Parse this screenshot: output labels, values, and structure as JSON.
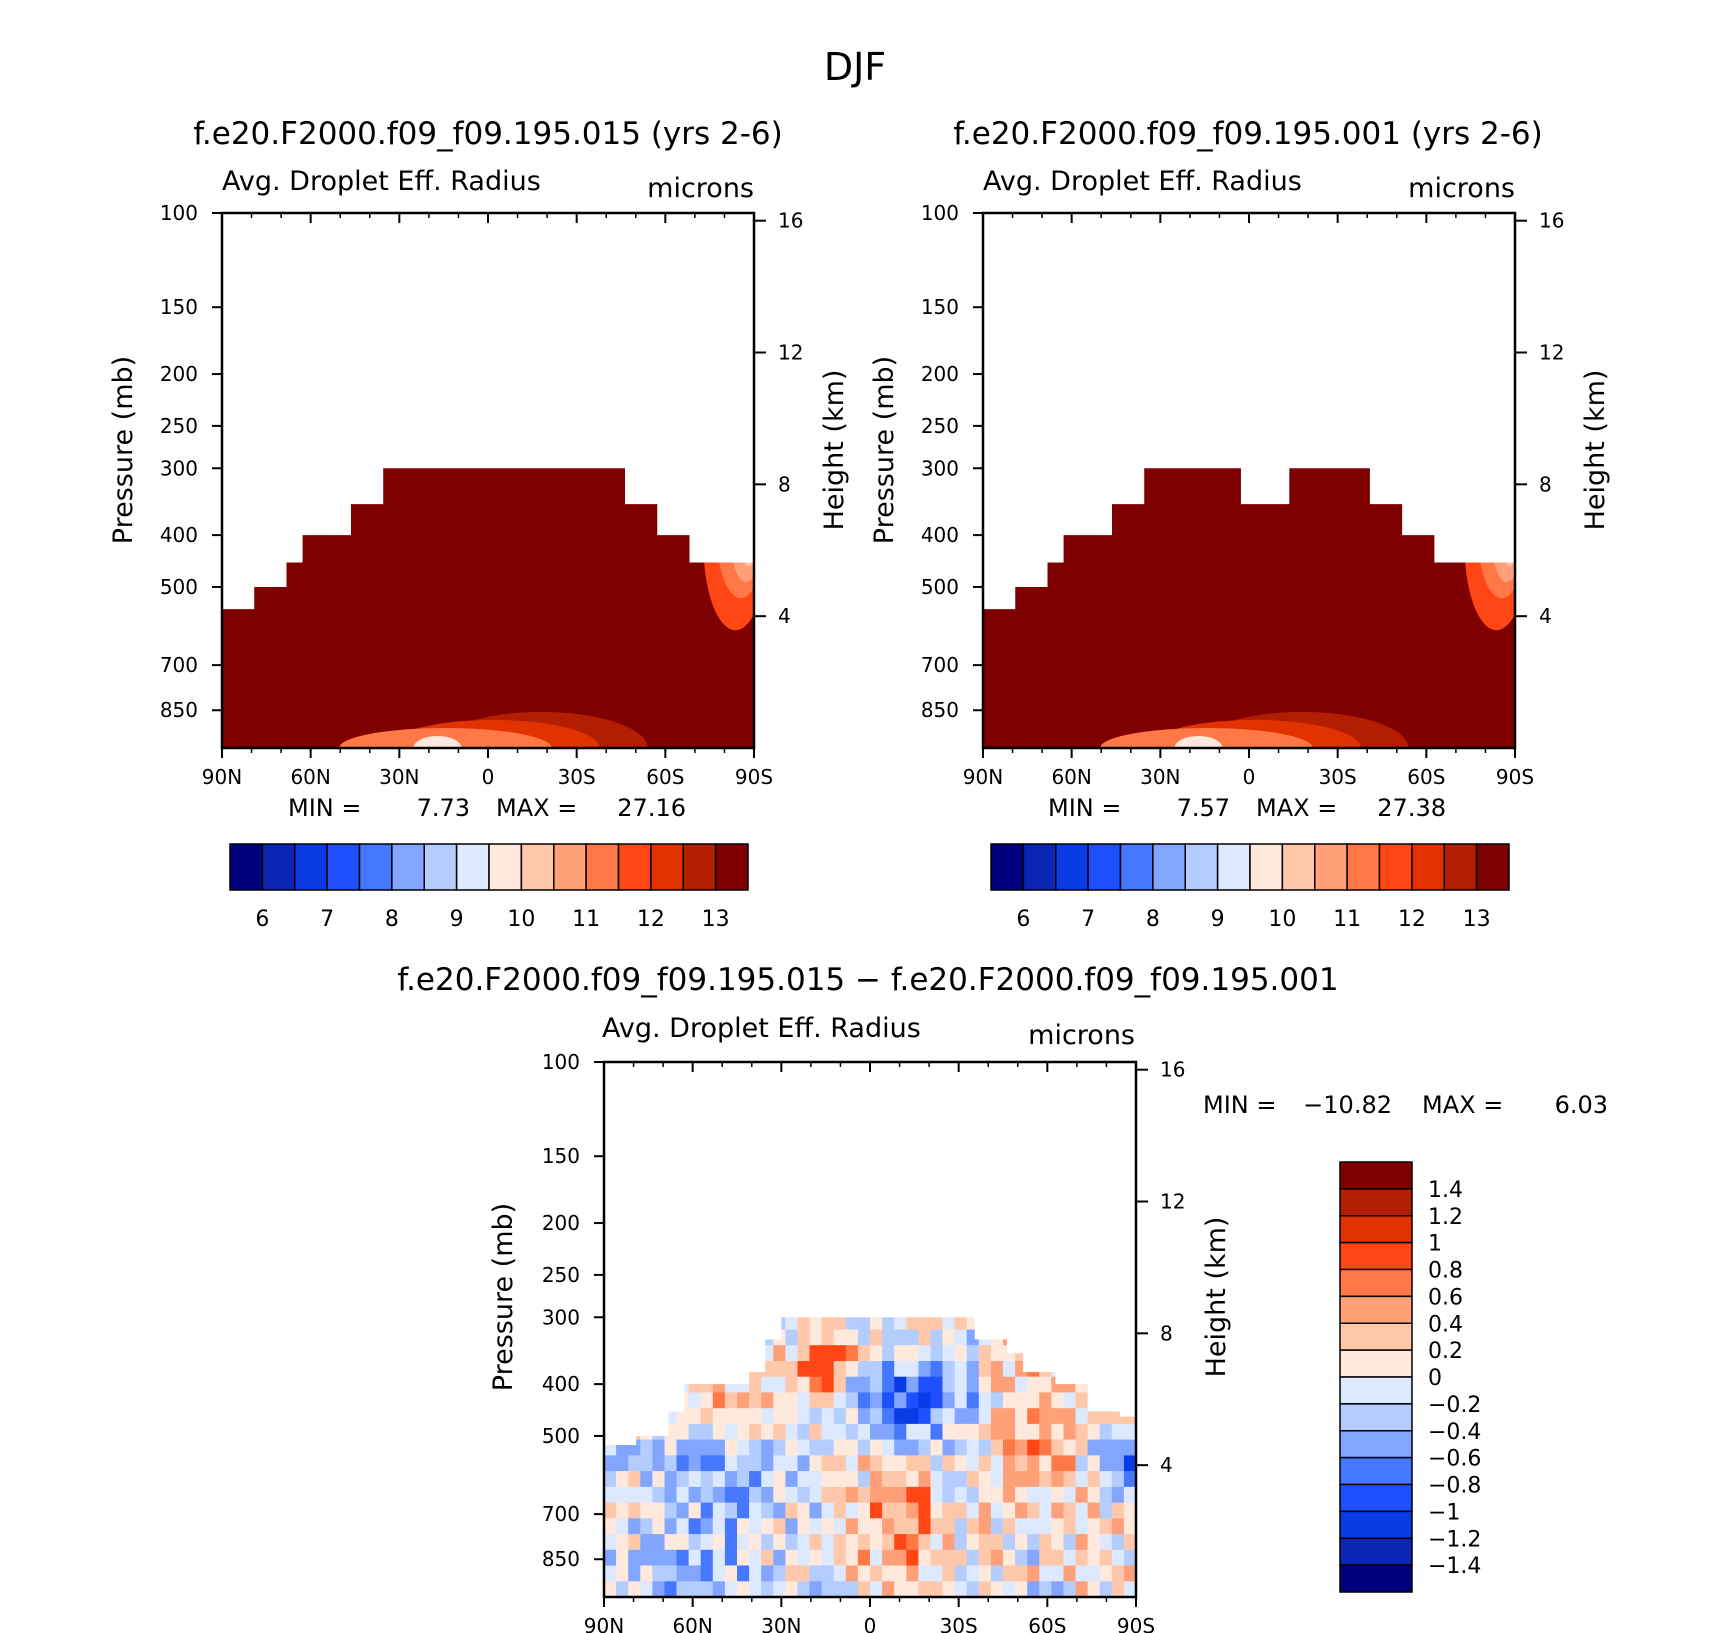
{
  "figure": {
    "title": "DJF"
  },
  "chart_data": [
    {
      "type": "heatmap",
      "title": "f.e20.F2000.f09_f09.195.015 (yrs 2-6)",
      "subtitle_left": "Avg. Droplet Eff. Radius",
      "subtitle_right": "microns",
      "ylabel": "Pressure (mb)",
      "ylabel_right": "Height (km)",
      "x_ticks": [
        "90N",
        "60N",
        "30N",
        "0",
        "30S",
        "60S",
        "90S"
      ],
      "x_values": [
        90,
        60,
        30,
        0,
        -30,
        -60,
        -90
      ],
      "y_ticks": [
        100,
        150,
        200,
        250,
        300,
        400,
        500,
        700,
        850
      ],
      "y_right_ticks": [
        4,
        8,
        12,
        16
      ],
      "ylim": [
        100,
        1000
      ],
      "y_scale": "log",
      "min_label": "MIN =",
      "min_value": "7.73",
      "max_label": "MAX =",
      "max_value": "27.16",
      "colorbar": {
        "labels": [
          "6",
          "7",
          "8",
          "9",
          "10",
          "11",
          "12",
          "13"
        ],
        "colors": [
          "#00007f",
          "#0a24b3",
          "#0a3ce6",
          "#1e50ff",
          "#4678ff",
          "#82a5ff",
          "#b4cdff",
          "#dce9ff",
          "#ffe9dc",
          "#ffc8aa",
          "#ffa078",
          "#ff7846",
          "#ff4614",
          "#e13200",
          "#b41e00",
          "#7f0000"
        ]
      },
      "field_top_pressure": [
        550,
        550,
        500,
        500,
        450,
        400,
        400,
        400,
        350,
        350,
        300,
        300,
        300,
        300,
        300,
        300,
        300,
        300,
        300,
        300,
        300,
        300,
        300,
        300,
        300,
        350,
        350,
        400,
        400,
        450,
        450,
        450,
        450
      ]
    },
    {
      "type": "heatmap",
      "title": "f.e20.F2000.f09_f09.195.001 (yrs 2-6)",
      "subtitle_left": "Avg. Droplet Eff. Radius",
      "subtitle_right": "microns",
      "ylabel": "Pressure (mb)",
      "ylabel_right": "Height (km)",
      "x_ticks": [
        "90N",
        "60N",
        "30N",
        "0",
        "30S",
        "60S",
        "90S"
      ],
      "x_values": [
        90,
        60,
        30,
        0,
        -30,
        -60,
        -90
      ],
      "y_ticks": [
        100,
        150,
        200,
        250,
        300,
        400,
        500,
        700,
        850
      ],
      "y_right_ticks": [
        4,
        8,
        12,
        16
      ],
      "ylim": [
        100,
        1000
      ],
      "y_scale": "log",
      "min_label": "MIN =",
      "min_value": "7.57",
      "max_label": "MAX =",
      "max_value": "27.38",
      "colorbar": {
        "labels": [
          "6",
          "7",
          "8",
          "9",
          "10",
          "11",
          "12",
          "13"
        ],
        "colors": [
          "#00007f",
          "#0a24b3",
          "#0a3ce6",
          "#1e50ff",
          "#4678ff",
          "#82a5ff",
          "#b4cdff",
          "#dce9ff",
          "#ffe9dc",
          "#ffc8aa",
          "#ffa078",
          "#ff7846",
          "#ff4614",
          "#e13200",
          "#b41e00",
          "#7f0000"
        ]
      },
      "field_top_pressure": [
        550,
        550,
        500,
        500,
        450,
        400,
        400,
        400,
        350,
        350,
        300,
        300,
        300,
        300,
        300,
        300,
        350,
        350,
        350,
        300,
        300,
        300,
        300,
        300,
        350,
        350,
        400,
        400,
        450,
        450,
        450,
        450,
        450
      ]
    },
    {
      "type": "heatmap",
      "title": "f.e20.F2000.f09_f09.195.015 − f.e20.F2000.f09_f09.195.001",
      "subtitle_left": "Avg. Droplet Eff. Radius",
      "subtitle_right": "microns",
      "ylabel": "Pressure (mb)",
      "ylabel_right": "Height (km)",
      "x_ticks": [
        "90N",
        "60N",
        "30N",
        "0",
        "30S",
        "60S",
        "90S"
      ],
      "x_values": [
        90,
        60,
        30,
        0,
        -30,
        -60,
        -90
      ],
      "y_ticks": [
        100,
        150,
        200,
        250,
        300,
        400,
        500,
        700,
        850
      ],
      "y_right_ticks": [
        4,
        8,
        12,
        16
      ],
      "ylim": [
        100,
        1000
      ],
      "y_scale": "log",
      "min_label": "MIN =",
      "min_value": "−10.82",
      "max_label": "MAX =",
      "max_value": "6.03",
      "colorbar": {
        "labels": [
          "1.4",
          "1.2",
          "1",
          "0.8",
          "0.6",
          "0.4",
          "0.2",
          "0",
          "−0.2",
          "−0.4",
          "−0.6",
          "−0.8",
          "−1",
          "−1.2",
          "−1.4"
        ],
        "colors": [
          "#7f0000",
          "#b41e00",
          "#e13200",
          "#ff4614",
          "#ff7846",
          "#ffa078",
          "#ffc8aa",
          "#ffe9dc",
          "#dce9ff",
          "#b4cdff",
          "#82a5ff",
          "#4678ff",
          "#1e50ff",
          "#0a3ce6",
          "#0a24b3",
          "#00007f"
        ]
      },
      "field_top_pressure": [
        520,
        520,
        500,
        500,
        450,
        400,
        400,
        400,
        400,
        380,
        330,
        300,
        300,
        300,
        300,
        300,
        300,
        300,
        300,
        300,
        300,
        300,
        300,
        330,
        330,
        350,
        380,
        380,
        400,
        400,
        450,
        450,
        460
      ]
    }
  ]
}
